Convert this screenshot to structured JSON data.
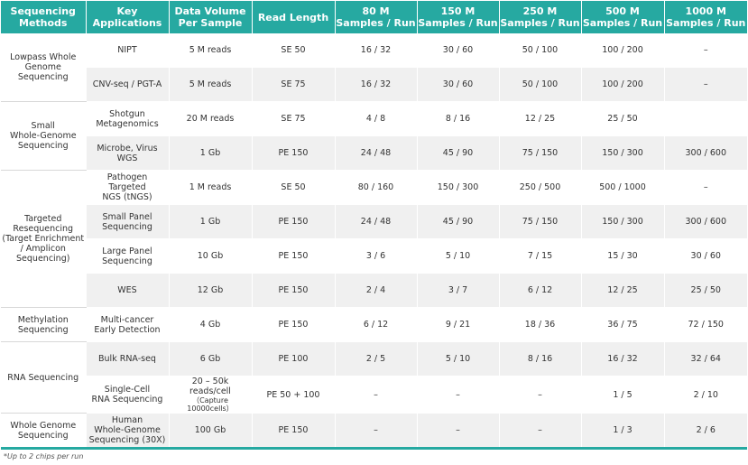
{
  "headers": {
    "methods": [
      "Sequencing",
      "Methods"
    ],
    "applications": [
      "Key",
      "Applications"
    ],
    "volume": [
      "Data Volume",
      "Per Sample"
    ],
    "read": "Read Length",
    "run80": [
      "80 M",
      "Samples / Run"
    ],
    "run150": [
      "150 M",
      "Samples / Run"
    ],
    "run250": [
      "250 M",
      "Samples / Run"
    ],
    "run500": [
      "500 M",
      "Samples / Run"
    ],
    "run1000": [
      "1000 M",
      "Samples / Run"
    ]
  },
  "methods": {
    "lowpass": [
      "Lowpass Whole",
      "Genome",
      "Sequencing"
    ],
    "small_wgs": [
      "Small",
      "Whole-Genome",
      "Sequencing"
    ],
    "targeted": [
      "Targeted",
      "Resequencing",
      "(Target Enrichment",
      "/ Amplicon",
      "Sequencing)"
    ],
    "methylation": [
      "Methylation",
      "Sequencing"
    ],
    "rna": [
      "RNA Sequencing"
    ],
    "wgs": [
      "Whole Genome",
      "Sequencing"
    ]
  },
  "rows": [
    {
      "app": [
        "NIPT"
      ],
      "vol": "5 M reads",
      "read": "SE 50",
      "r80": "16 / 32",
      "r150": "30 / 60",
      "r250": "50 / 100",
      "r500": "100 / 200",
      "r1000": "–"
    },
    {
      "app": [
        "CNV-seq / PGT-A"
      ],
      "vol": "5 M reads",
      "read": "SE 75",
      "r80": "16 / 32",
      "r150": "30 / 60",
      "r250": "50 / 100",
      "r500": "100 / 200",
      "r1000": "–"
    },
    {
      "app": [
        "Shotgun",
        "Metagenomics"
      ],
      "vol": "20 M reads",
      "read": "SE 75",
      "r80": "4 / 8",
      "r150": "8 / 16",
      "r250": "12 / 25",
      "r500": "25 / 50",
      "r1000": ""
    },
    {
      "app": [
        "Microbe, Virus",
        "WGS"
      ],
      "vol": "1 Gb",
      "read": "PE 150",
      "r80": "24 / 48",
      "r150": "45 / 90",
      "r250": "75 / 150",
      "r500": "150 / 300",
      "r1000": "300 / 600"
    },
    {
      "app": [
        "Pathogen Targeted",
        "NGS (tNGS)"
      ],
      "vol": "1 M reads",
      "read": "SE 50",
      "r80": "80 / 160",
      "r150": "150 / 300",
      "r250": "250 / 500",
      "r500": "500 / 1000",
      "r1000": "–"
    },
    {
      "app": [
        "Small Panel",
        "Sequencing"
      ],
      "vol": "1 Gb",
      "read": "PE 150",
      "r80": "24 / 48",
      "r150": "45 / 90",
      "r250": "75 / 150",
      "r500": "150 / 300",
      "r1000": "300 / 600"
    },
    {
      "app": [
        "Large Panel",
        "Sequencing"
      ],
      "vol": "10 Gb",
      "read": "PE 150",
      "r80": "3 / 6",
      "r150": "5 / 10",
      "r250": "7 / 15",
      "r500": "15 / 30",
      "r1000": "30 / 60"
    },
    {
      "app": [
        "WES"
      ],
      "vol": "12 Gb",
      "read": "PE 150",
      "r80": "2 / 4",
      "r150": "3 / 7",
      "r250": "6 / 12",
      "r500": "12 / 25",
      "r1000": "25 / 50"
    },
    {
      "app": [
        "Multi-cancer",
        "Early Detection"
      ],
      "vol": "4 Gb",
      "read": "PE 150",
      "r80": "6 / 12",
      "r150": "9 / 21",
      "r250": "18 / 36",
      "r500": "36 / 75",
      "r1000": "72 / 150"
    },
    {
      "app": [
        "Bulk RNA-seq"
      ],
      "vol": "6 Gb",
      "read": "PE 100",
      "r80": "2 / 5",
      "r150": "5 / 10",
      "r250": "8 / 16",
      "r500": "16 / 32",
      "r1000": "32 / 64"
    },
    {
      "app": [
        "Single-Cell",
        "RNA Sequencing"
      ],
      "vol": "20 – 50k reads/cell",
      "vol_sub": "（Capture 10000cells）",
      "read": "PE 50 + 100",
      "r80": "–",
      "r150": "–",
      "r250": "–",
      "r500": "1 / 5",
      "r1000": "2 / 10"
    },
    {
      "app": [
        "Human",
        "Whole-Genome",
        "Sequencing (30X)"
      ],
      "vol": "100 Gb",
      "read": "PE 150",
      "r80": "–",
      "r150": "–",
      "r250": "–",
      "r500": "1 / 3",
      "r1000": "2 / 6"
    }
  ],
  "footnote": "*Up to 2 chips per run",
  "colors": {
    "accent": "#26a9a1",
    "shade": "#f0f0f0"
  }
}
